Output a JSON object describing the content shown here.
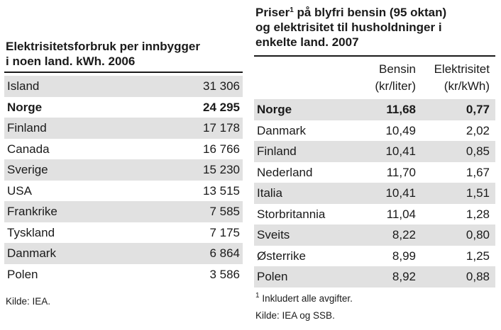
{
  "left": {
    "title_line1": "Elektrisitetsforbruk per innbygger",
    "title_line2": "i noen land. kWh. 2006",
    "rows": [
      {
        "country": "Island",
        "value": "31 306"
      },
      {
        "country": "Norge",
        "value": "24 295"
      },
      {
        "country": "Finland",
        "value": "17 178"
      },
      {
        "country": "Canada",
        "value": "16 766"
      },
      {
        "country": "Sverige",
        "value": "15 230"
      },
      {
        "country": "USA",
        "value": "13 515"
      },
      {
        "country": "Frankrike",
        "value": "7 585"
      },
      {
        "country": "Tyskland",
        "value": "7 175"
      },
      {
        "country": "Danmark",
        "value": "6 864"
      },
      {
        "country": "Polen",
        "value": "3 586"
      }
    ],
    "source": "Kilde: IEA."
  },
  "right": {
    "title_line1_pre": "Priser",
    "title_sup": "1",
    "title_line1_post": " på blyfri bensin (95 oktan)",
    "title_line2": "og elektrisitet til husholdninger i",
    "title_line3": "enkelte land. 2007",
    "col1_line1": "Bensin",
    "col1_line2": "(kr/liter)",
    "col2_line1": "Elektrisitet",
    "col2_line2": "(kr/kWh)",
    "rows": [
      {
        "country": "Norge",
        "bensin": "11,68",
        "el": "0,77"
      },
      {
        "country": "Danmark",
        "bensin": "10,49",
        "el": "2,02"
      },
      {
        "country": "Finland",
        "bensin": "10,41",
        "el": "0,85"
      },
      {
        "country": "Nederland",
        "bensin": "11,70",
        "el": "1,67"
      },
      {
        "country": "Italia",
        "bensin": "10,41",
        "el": "1,51"
      },
      {
        "country": "Storbritannia",
        "bensin": "11,04",
        "el": "1,28"
      },
      {
        "country": "Sveits",
        "bensin": "8,22",
        "el": "0,80"
      },
      {
        "country": "Østerrike",
        "bensin": "8,99",
        "el": "1,25"
      },
      {
        "country": "Polen",
        "bensin": "8,92",
        "el": "0,88"
      }
    ],
    "footnote_sup": "1",
    "footnote_text": " Inkludert alle avgifter.",
    "source": "Kilde: IEA og SSB."
  },
  "colors": {
    "shade": "#e1e1e1",
    "text": "#1a1a1a"
  }
}
